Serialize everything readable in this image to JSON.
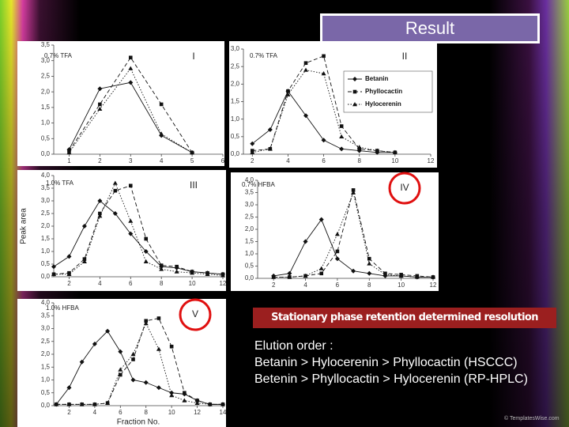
{
  "slide_title": "Result",
  "banner": "Stationary phase retention determined resolution",
  "body_lines": [
    "Elution order :",
    "Betanin > Hylocerenin > Phyllocactin (HSCCC)",
    "Betenin > Phyllocactin > Hylocerenin (RP-HPLC)"
  ],
  "footer": "© TemplatesWise.com",
  "chart_data": [
    {
      "type": "line",
      "title": "I",
      "annotation": "0.7% TFA",
      "x": [
        1,
        2,
        3,
        4,
        5
      ],
      "xlim": [
        0.5,
        6
      ],
      "xticks": [
        1,
        2,
        3,
        4,
        5,
        6
      ],
      "ylim": [
        0,
        3.5
      ],
      "yticks": [
        {
          "value": 0,
          "label": "0,0"
        },
        {
          "value": 0.5,
          "label": "0,5"
        },
        {
          "value": 1,
          "label": "1,0"
        },
        {
          "value": 1.5,
          "label": "1,5"
        },
        {
          "value": 2,
          "label": "2,0"
        },
        {
          "value": 2.5,
          "label": "2,5"
        },
        {
          "value": 3,
          "label": "3,0"
        },
        {
          "value": 3.5,
          "label": "3,5"
        }
      ],
      "series": [
        {
          "color": "#111111",
          "values": [
            0.15,
            2.1,
            2.3,
            0.6,
            0.05
          ]
        },
        {
          "color": "#111111",
          "values": [
            0.1,
            1.6,
            3.1,
            1.6,
            0.05
          ]
        },
        {
          "color": "#111111",
          "values": [
            0.05,
            1.45,
            2.75,
            0.65,
            0.05
          ]
        }
      ]
    },
    {
      "type": "line",
      "title": "II",
      "annotation": "0.7% TFA",
      "x": [
        2,
        3,
        4,
        5,
        6,
        7,
        8,
        9,
        10
      ],
      "xlim": [
        1.5,
        12
      ],
      "xticks": [
        2,
        4,
        6,
        8,
        10,
        12
      ],
      "ylim": [
        0,
        3
      ],
      "yticks": [
        {
          "value": 0,
          "label": "0,0"
        },
        {
          "value": 0.5,
          "label": "0,5"
        },
        {
          "value": 1,
          "label": "1,0"
        },
        {
          "value": 1.5,
          "label": "1,5"
        },
        {
          "value": 2,
          "label": "2,0"
        },
        {
          "value": 2.5,
          "label": "2,5"
        },
        {
          "value": 3,
          "label": "3,0"
        }
      ],
      "series": [
        {
          "name": "Betanin",
          "color": "#111111",
          "values": [
            0.3,
            0.7,
            1.8,
            1.1,
            0.4,
            0.15,
            0.1,
            0.05,
            0.05
          ]
        },
        {
          "name": "Phyllocactin",
          "color": "#111111",
          "values": [
            0.1,
            0.15,
            1.8,
            2.6,
            2.8,
            0.8,
            0.15,
            0.1,
            0.05
          ]
        },
        {
          "name": "Hylocerenin",
          "color": "#111111",
          "values": [
            0.05,
            0.15,
            1.7,
            2.4,
            2.3,
            0.5,
            0.2,
            0.1,
            0.05
          ]
        }
      ]
    },
    {
      "type": "line",
      "title": "III",
      "annotation": "1.0% TFA",
      "ylabel": "Peak area",
      "x": [
        1,
        2,
        3,
        4,
        5,
        6,
        7,
        8,
        9,
        10,
        11,
        12
      ],
      "xlim": [
        1,
        12
      ],
      "xticks": [
        2,
        4,
        6,
        8,
        10,
        12
      ],
      "ylim": [
        0,
        4
      ],
      "yticks": [
        {
          "value": 0,
          "label": "0,0"
        },
        {
          "value": 0.5,
          "label": "0,5"
        },
        {
          "value": 1,
          "label": "1,0"
        },
        {
          "value": 1.5,
          "label": "1,5"
        },
        {
          "value": 2,
          "label": "2,0"
        },
        {
          "value": 2.5,
          "label": "2,5"
        },
        {
          "value": 3,
          "label": "3,0"
        },
        {
          "value": 3.5,
          "label": "3,5"
        },
        {
          "value": 4,
          "label": "4,0"
        }
      ],
      "series": [
        {
          "color": "#111111",
          "values": [
            0.4,
            0.8,
            2.0,
            3.0,
            2.5,
            1.7,
            1.0,
            0.4,
            0.35,
            0.2,
            0.15,
            0.1
          ]
        },
        {
          "color": "#111111",
          "values": [
            0.1,
            0.15,
            0.7,
            2.5,
            3.4,
            3.6,
            1.5,
            0.45,
            0.4,
            0.2,
            0.15,
            0.1
          ]
        },
        {
          "color": "#111111",
          "values": [
            0.1,
            0.1,
            0.6,
            2.4,
            3.7,
            2.2,
            0.6,
            0.3,
            0.2,
            0.15,
            0.1,
            0.05
          ]
        }
      ]
    },
    {
      "type": "line",
      "title": "IV",
      "annotation": "0.7% HFBA",
      "x": [
        2,
        3,
        4,
        5,
        6,
        7,
        8,
        9,
        10,
        11,
        12
      ],
      "xlim": [
        1,
        12
      ],
      "xticks": [
        2,
        4,
        6,
        8,
        10,
        12
      ],
      "ylim": [
        0,
        4
      ],
      "yticks": [
        {
          "value": 0,
          "label": "0,0"
        },
        {
          "value": 0.5,
          "label": "0,5"
        },
        {
          "value": 1,
          "label": "1,0"
        },
        {
          "value": 1.5,
          "label": "1,5"
        },
        {
          "value": 2,
          "label": "2,0"
        },
        {
          "value": 2.5,
          "label": "2,5"
        },
        {
          "value": 3,
          "label": "3,0"
        },
        {
          "value": 3.5,
          "label": "3,5"
        },
        {
          "value": 4,
          "label": "4,0"
        }
      ],
      "series": [
        {
          "color": "#111111",
          "values": [
            0.1,
            0.2,
            1.5,
            2.4,
            0.8,
            0.3,
            0.2,
            0.1,
            0.1,
            0.05,
            0.05
          ]
        },
        {
          "color": "#111111",
          "values": [
            0.05,
            0.05,
            0.1,
            0.2,
            1.1,
            3.6,
            0.8,
            0.2,
            0.15,
            0.1,
            0.05
          ]
        },
        {
          "color": "#111111",
          "values": [
            0.05,
            0.05,
            0.1,
            0.4,
            1.8,
            3.5,
            0.6,
            0.15,
            0.1,
            0.05,
            0.05
          ]
        }
      ]
    },
    {
      "type": "line",
      "title": "V",
      "annotation": "1.0% HFBA",
      "xlabel": "Fraction No.",
      "x": [
        1,
        2,
        3,
        4,
        5,
        6,
        7,
        8,
        9,
        10,
        11,
        12,
        13,
        14
      ],
      "xlim": [
        0.8,
        14
      ],
      "xticks": [
        2,
        4,
        6,
        8,
        10,
        12,
        14
      ],
      "ylim": [
        0,
        4
      ],
      "yticks": [
        {
          "value": 0,
          "label": "0,0"
        },
        {
          "value": 0.5,
          "label": "0,5"
        },
        {
          "value": 1,
          "label": "1,0"
        },
        {
          "value": 1.5,
          "label": "1,5"
        },
        {
          "value": 2,
          "label": "2,0"
        },
        {
          "value": 2.5,
          "label": "2,5"
        },
        {
          "value": 3,
          "label": "3,0"
        },
        {
          "value": 3.5,
          "label": "3,5"
        },
        {
          "value": 4,
          "label": "4,0"
        }
      ],
      "series": [
        {
          "color": "#111111",
          "values": [
            0.05,
            0.7,
            1.7,
            2.4,
            2.9,
            2.1,
            1.0,
            0.9,
            0.7,
            0.5,
            0.45,
            0.2,
            0.05,
            0.05
          ]
        },
        {
          "color": "#111111",
          "values": [
            0.05,
            0.05,
            0.05,
            0.05,
            0.1,
            1.2,
            1.8,
            3.3,
            3.4,
            2.3,
            0.5,
            0.2,
            0.05,
            0.05
          ]
        },
        {
          "color": "#111111",
          "values": [
            0.05,
            0.05,
            0.05,
            0.05,
            0.1,
            1.4,
            2.0,
            3.2,
            2.2,
            0.4,
            0.2,
            0.1,
            0.05,
            0.05
          ]
        }
      ]
    }
  ]
}
